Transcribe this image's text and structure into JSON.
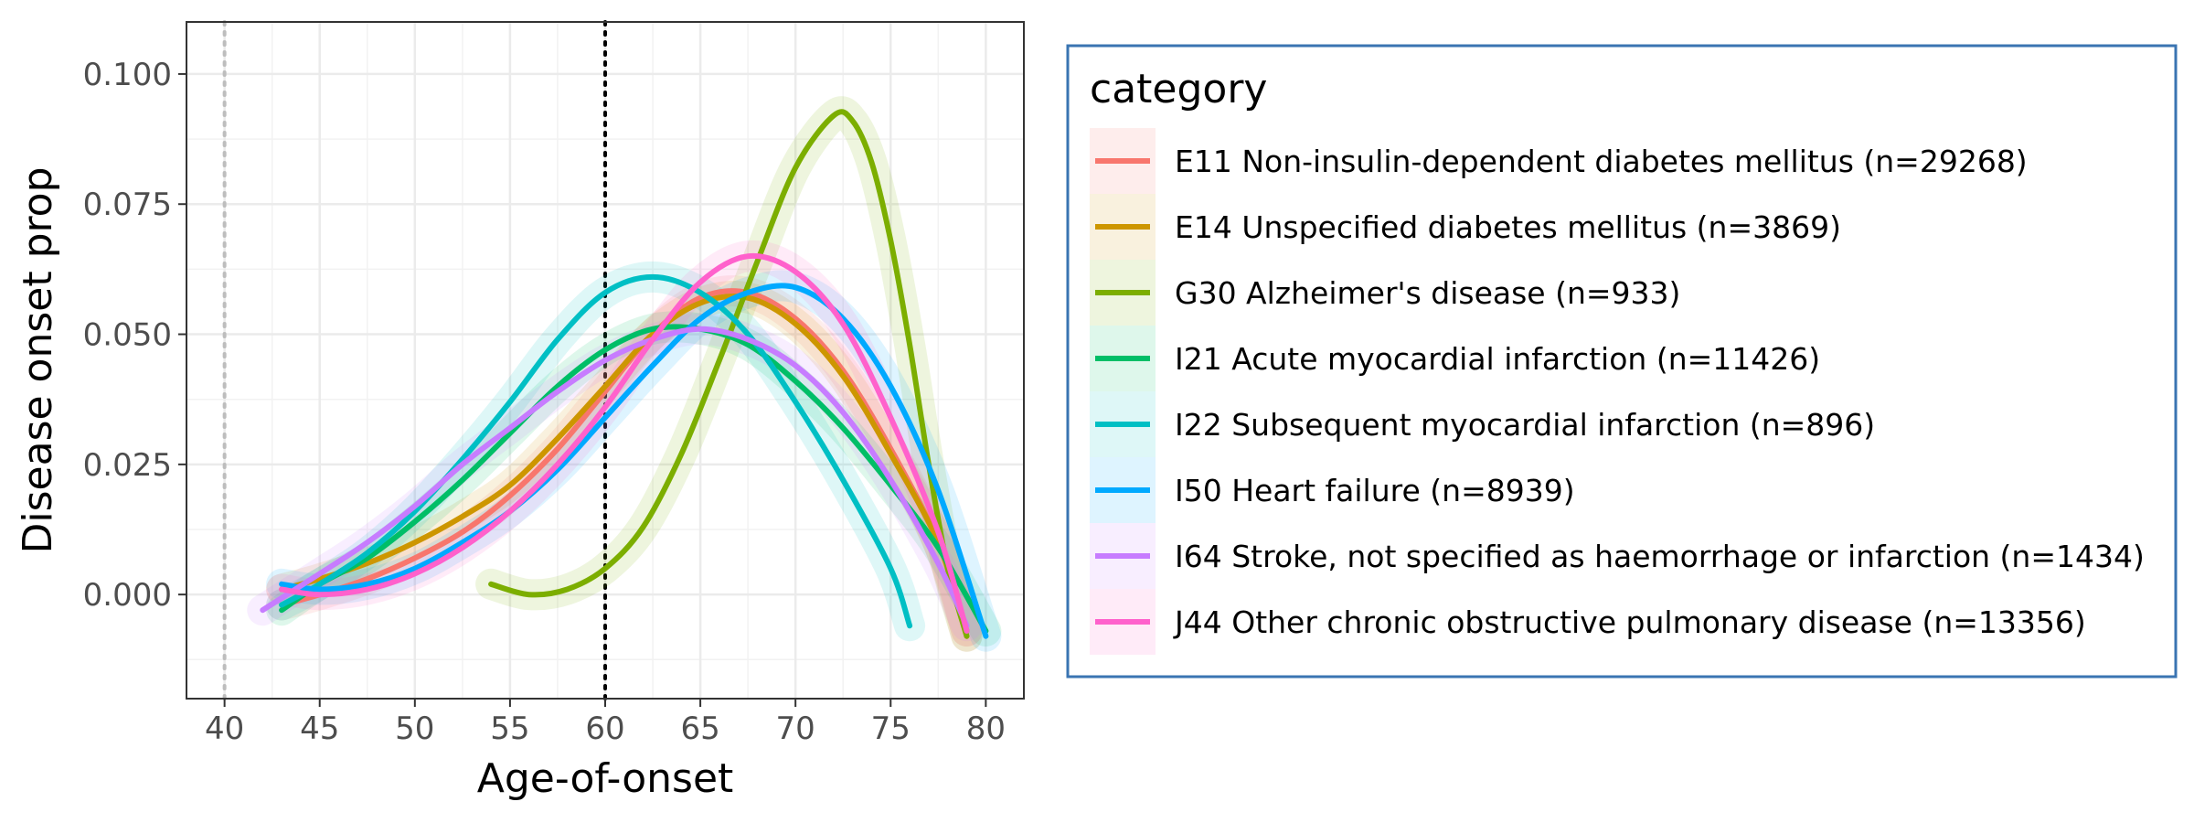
{
  "chart_data": {
    "type": "line",
    "xlabel": "Age-of-onset",
    "ylabel": "Disease onset prop",
    "xlim": [
      38,
      82
    ],
    "ylim": [
      -0.02,
      0.11
    ],
    "x_ticks": [
      40,
      45,
      50,
      55,
      60,
      65,
      70,
      75,
      80
    ],
    "x_tick_labels": [
      "40",
      "45",
      "50",
      "55",
      "60",
      "65",
      "70",
      "75",
      "80"
    ],
    "y_ticks": [
      0.0,
      0.025,
      0.05,
      0.075,
      0.1
    ],
    "y_tick_labels": [
      "0.000",
      "0.025",
      "0.050",
      "0.075",
      "0.100"
    ],
    "grid": true,
    "reference_lines": [
      {
        "x": 40,
        "style": "dotted",
        "color": "#bdbdbd"
      },
      {
        "x": 60,
        "style": "dotted",
        "color": "#000000"
      }
    ],
    "legend": {
      "title": "category",
      "position": "right"
    },
    "series": [
      {
        "name": "E11 Non-insulin-dependent diabetes mellitus (n=29268)",
        "color": "#F8766D",
        "x": [
          43,
          45,
          47.5,
          50,
          52.5,
          55,
          57.5,
          60,
          62.5,
          65,
          67.5,
          70,
          72.5,
          75,
          77.5,
          79
        ],
        "y": [
          -0.002,
          0.0,
          0.003,
          0.007,
          0.012,
          0.019,
          0.028,
          0.039,
          0.05,
          0.057,
          0.058,
          0.053,
          0.043,
          0.028,
          0.01,
          -0.008
        ]
      },
      {
        "name": "E14 Unspecified diabetes mellitus (n=3869)",
        "color": "#CD9600",
        "x": [
          43,
          45,
          47.5,
          50,
          52.5,
          55,
          57.5,
          60,
          62.5,
          65,
          67.5,
          70,
          72.5,
          75,
          77.5,
          79
        ],
        "y": [
          0.001,
          0.003,
          0.006,
          0.01,
          0.015,
          0.021,
          0.03,
          0.04,
          0.05,
          0.056,
          0.057,
          0.052,
          0.042,
          0.027,
          0.01,
          -0.007
        ]
      },
      {
        "name": "G30 Alzheimer's disease (n=933)",
        "color": "#7CAE00",
        "x": [
          54,
          56,
          58,
          60,
          62,
          64,
          66,
          68,
          70,
          72,
          73,
          74,
          75,
          76,
          77,
          78,
          79
        ],
        "y": [
          0.002,
          0.0,
          0.001,
          0.005,
          0.013,
          0.027,
          0.045,
          0.064,
          0.082,
          0.092,
          0.091,
          0.083,
          0.068,
          0.048,
          0.025,
          0.005,
          -0.008
        ]
      },
      {
        "name": "I21 Acute myocardial infarction (n=11426)",
        "color": "#00BE67",
        "x": [
          43,
          45,
          47.5,
          50,
          52.5,
          55,
          57.5,
          60,
          62.5,
          65,
          67.5,
          70,
          72.5,
          75,
          77.5,
          80
        ],
        "y": [
          -0.003,
          0.002,
          0.007,
          0.014,
          0.022,
          0.031,
          0.04,
          0.047,
          0.051,
          0.051,
          0.048,
          0.041,
          0.032,
          0.021,
          0.009,
          -0.007
        ]
      },
      {
        "name": "I22 Subsequent myocardial infarction (n=896)",
        "color": "#00BFC4",
        "x": [
          43,
          45,
          47.5,
          50,
          52.5,
          55,
          57.5,
          60,
          62.5,
          65,
          67.5,
          70,
          72.5,
          75,
          76
        ],
        "y": [
          -0.002,
          0.002,
          0.008,
          0.016,
          0.026,
          0.037,
          0.049,
          0.058,
          0.061,
          0.058,
          0.05,
          0.037,
          0.022,
          0.005,
          -0.006
        ]
      },
      {
        "name": "I50 Heart failure (n=8939)",
        "color": "#00A9FF",
        "x": [
          43,
          45,
          47.5,
          50,
          52.5,
          55,
          57.5,
          60,
          62.5,
          65,
          67.5,
          70,
          72.5,
          75,
          77.5,
          80
        ],
        "y": [
          0.002,
          0.001,
          0.002,
          0.005,
          0.01,
          0.016,
          0.024,
          0.034,
          0.044,
          0.053,
          0.058,
          0.059,
          0.053,
          0.04,
          0.02,
          -0.008
        ]
      },
      {
        "name": "I64 Stroke, not specified as haemorrhage or infarction (n=1434)",
        "color": "#C77CFF",
        "x": [
          42,
          45,
          47.5,
          50,
          52.5,
          55,
          57.5,
          60,
          62.5,
          65,
          67.5,
          70,
          72.5,
          75,
          77.5,
          79
        ],
        "y": [
          -0.003,
          0.004,
          0.01,
          0.017,
          0.025,
          0.032,
          0.039,
          0.045,
          0.049,
          0.051,
          0.049,
          0.044,
          0.035,
          0.022,
          0.006,
          -0.006
        ]
      },
      {
        "name": "J44 Other chronic obstructive pulmonary disease (n=13356)",
        "color": "#FF61CC",
        "x": [
          43,
          45,
          47.5,
          50,
          52.5,
          55,
          57.5,
          60,
          62.5,
          65,
          67.5,
          70,
          72.5,
          75,
          77.5,
          79
        ],
        "y": [
          0.001,
          0.0,
          0.001,
          0.004,
          0.009,
          0.016,
          0.025,
          0.036,
          0.049,
          0.06,
          0.065,
          0.062,
          0.052,
          0.034,
          0.012,
          -0.007
        ]
      }
    ]
  }
}
